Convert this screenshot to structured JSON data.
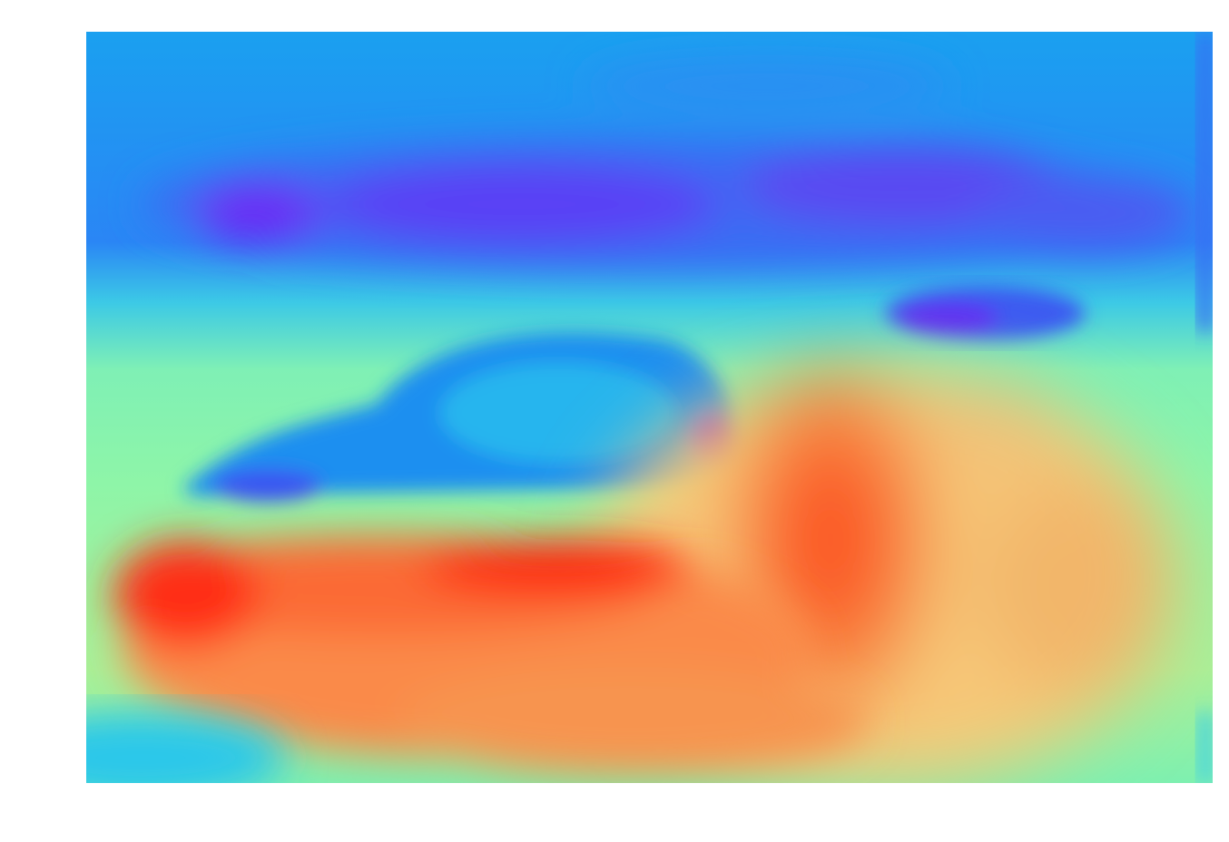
{
  "image": {
    "kind": "heatmap-overlay",
    "colormap": "rainbow",
    "colors": {
      "low": "#5b2bf5",
      "mid_low": "#1aa6f0",
      "mid": "#4de6c8",
      "mid_high": "#f2b56b",
      "high": "#ff1a0a"
    },
    "regions": [
      {
        "name": "sky-band",
        "level": "low"
      },
      {
        "name": "treeline",
        "level": "low"
      },
      {
        "name": "car-body",
        "level": "mid_low"
      },
      {
        "name": "car-underside",
        "level": "high"
      },
      {
        "name": "road-right",
        "level": "mid_high"
      }
    ]
  }
}
